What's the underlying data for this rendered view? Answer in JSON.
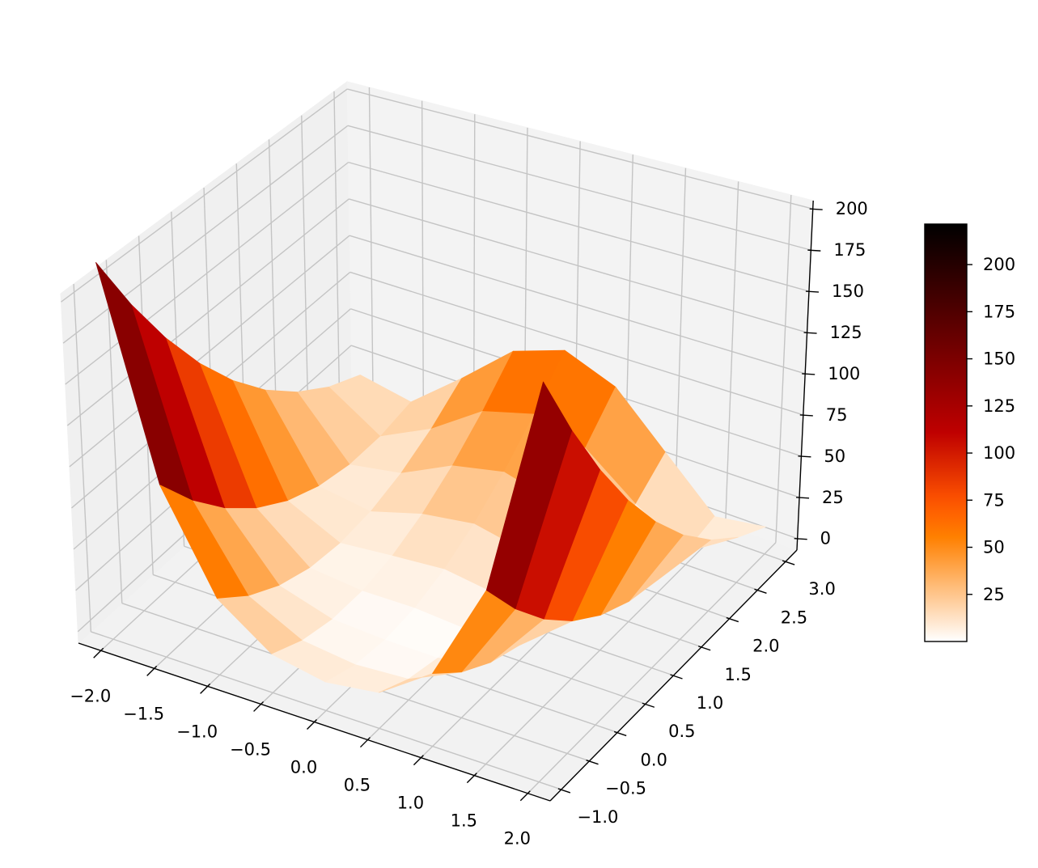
{
  "chart_data": {
    "type": "surface",
    "colormap": "gist_heat_r",
    "x": [
      -2,
      -1.5,
      -1,
      -0.5,
      0,
      0.5,
      1,
      1.5,
      2
    ],
    "y": [
      -1,
      -0.5,
      0,
      0.5,
      1,
      1.5,
      2,
      2.5,
      3
    ],
    "z": [
      [
        221.5,
        181.1,
        145,
        113.1,
        85.5,
        62.1,
        43,
        28.1,
        17.5
      ],
      [
        96,
        70.5,
        49.3,
        32.3,
        19.5,
        11,
        6.8,
        6.8,
        11
      ],
      [
        38,
        23.1,
        12.5,
        6.1,
        4,
        6.1,
        12.5,
        23.1,
        38
      ],
      [
        15.5,
        7,
        2.8,
        2.8,
        7,
        15.5,
        28.3,
        45.3,
        66.5
      ],
      [
        9.5,
        3.1,
        1,
        3.1,
        9.5,
        20.1,
        35,
        54.1,
        77.5
      ],
      [
        13.5,
        5,
        0.8,
        0.8,
        5,
        13.5,
        26.3,
        43.3,
        64.5
      ],
      [
        34,
        19.1,
        8.5,
        2.1,
        0,
        2.1,
        8.5,
        19.1,
        34
      ],
      [
        90,
        64.5,
        43.3,
        26.3,
        13.5,
        5,
        0.8,
        0.8,
        5
      ],
      [
        213.5,
        173.1,
        137,
        105.1,
        77.5,
        54.1,
        35,
        20.1,
        9.5
      ]
    ],
    "xlim": [
      -2.21,
      2.21
    ],
    "ylim": [
      -1.2,
      3.2
    ],
    "zlim": [
      -7,
      205
    ],
    "xticks": [
      {
        "value": -2,
        "label": "−2.0"
      },
      {
        "value": -1.5,
        "label": "−1.5"
      },
      {
        "value": -1,
        "label": "−1.0"
      },
      {
        "value": -0.5,
        "label": "−0.5"
      },
      {
        "value": 0,
        "label": "0.0"
      },
      0.5,
      {
        "value": 1,
        "label": "1.0"
      },
      1.5,
      {
        "value": 2,
        "label": "2.0"
      }
    ],
    "yticks": [
      {
        "value": -1,
        "label": "−1.0"
      },
      {
        "value": -0.5,
        "label": "−0.5"
      },
      {
        "value": 0,
        "label": "0.0"
      },
      0.5,
      {
        "value": 1,
        "label": "1.0"
      },
      1.5,
      {
        "value": 2,
        "label": "2.0"
      },
      2.5,
      {
        "value": 3,
        "label": "3.0"
      }
    ],
    "zticks": [
      0,
      25,
      50,
      75,
      100,
      125,
      150,
      175,
      200
    ],
    "colorbar_ticks": [
      25,
      50,
      75,
      100,
      125,
      150,
      175,
      200
    ],
    "grid": true
  }
}
